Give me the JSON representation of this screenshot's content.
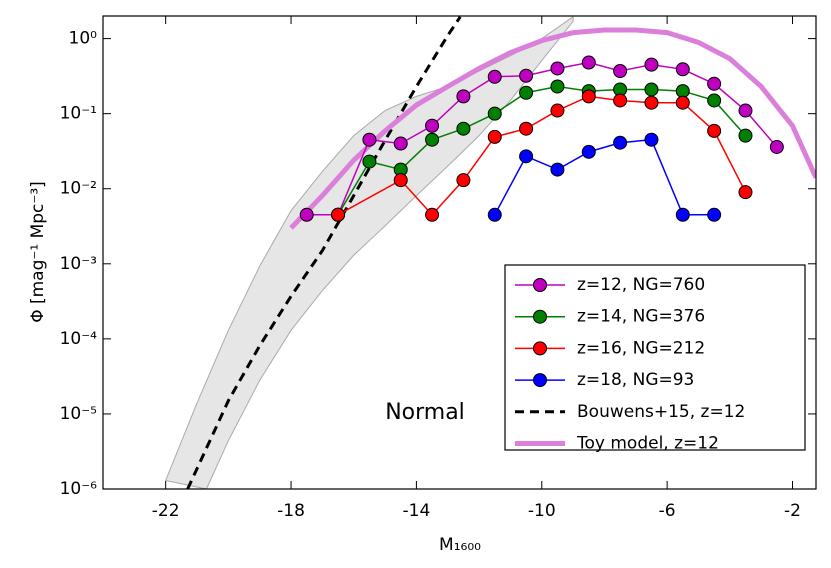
{
  "chart_data": {
    "type": "line",
    "x_label": "M₁₆₀₀",
    "y_label": "Φ [mag⁻¹ Mpc⁻³]",
    "annotation": "Normal",
    "xlim": [
      -24,
      -1.25
    ],
    "xticks": [
      -22,
      -18,
      -14,
      -10,
      -6,
      -2
    ],
    "ylim": [
      1e-06,
      2
    ],
    "log_y": true,
    "yticks": [
      {
        "value": 1e-06,
        "label": "10⁻⁶"
      },
      {
        "value": 1e-05,
        "label": "10⁻⁵"
      },
      {
        "value": 0.0001,
        "label": "10⁻⁴"
      },
      {
        "value": 0.001,
        "label": "10⁻³"
      },
      {
        "value": 0.01,
        "label": "10⁻²"
      },
      {
        "value": 0.1,
        "label": "10⁻¹"
      },
      {
        "value": 1,
        "label": "10⁰"
      }
    ],
    "legend": "lower right",
    "series": [
      {
        "name": "z=12, NG=760",
        "color": "#bf00bf",
        "x": [
          -17.5,
          -16.5,
          -15.5,
          -14.5,
          -13.5,
          -12.5,
          -11.5,
          -10.5,
          -9.5,
          -8.5,
          -7.5,
          -6.5,
          -5.5,
          -4.5,
          -3.5,
          -2.5
        ],
        "values": [
          0.0045,
          0.0045,
          0.045,
          0.04,
          0.069,
          0.17,
          0.31,
          0.32,
          0.4,
          0.48,
          0.37,
          0.45,
          0.39,
          0.25,
          0.11,
          0.036
        ]
      },
      {
        "name": "z=14, NG=376",
        "color": "#008000",
        "x": [
          -16.5,
          -15.5,
          -14.5,
          -13.5,
          -12.5,
          -11.5,
          -10.5,
          -9.5,
          -8.5,
          -7.5,
          -6.5,
          -5.5,
          -4.5,
          -3.5
        ],
        "values": [
          0.0045,
          0.023,
          0.018,
          0.045,
          0.063,
          0.1,
          0.19,
          0.23,
          0.2,
          0.21,
          0.21,
          0.2,
          0.15,
          0.051
        ]
      },
      {
        "name": "z=16, NG=212",
        "color": "#ff0000",
        "x": [
          -16.5,
          -14.5,
          -13.5,
          -12.5,
          -11.5,
          -10.5,
          -9.5,
          -8.5,
          -7.5,
          -6.5,
          -5.5,
          -4.5,
          -3.5
        ],
        "values": [
          0.0045,
          0.013,
          0.0045,
          0.013,
          0.049,
          0.063,
          0.11,
          0.17,
          0.15,
          0.14,
          0.14,
          0.059,
          0.009
        ]
      },
      {
        "name": "z=18, NG=93",
        "color": "#0000ff",
        "x": [
          -11.5,
          -10.5,
          -9.5,
          -8.5,
          -7.5,
          -6.5,
          -5.5,
          -4.5
        ],
        "values": [
          0.0045,
          0.027,
          0.018,
          0.031,
          0.041,
          0.045,
          0.0045,
          0.0045
        ]
      }
    ],
    "lines": [
      {
        "name": "Bouwens+15, z=12",
        "color": "#000000",
        "dashed": true,
        "x": [
          -21.3,
          -20,
          -19,
          -18,
          -17,
          -16,
          -15,
          -14,
          -13,
          -12.6
        ],
        "values": [
          1e-06,
          1.5e-05,
          8.1e-05,
          0.00037,
          0.0015,
          0.0081,
          0.044,
          0.23,
          1.1,
          1.95
        ]
      },
      {
        "name": "Toy model, z=12",
        "color": "#da7fda",
        "dashed": false,
        "x": [
          -18,
          -17,
          -16,
          -15,
          -14,
          -13,
          -12,
          -11,
          -10,
          -9,
          -8,
          -7,
          -6,
          -5,
          -4,
          -3,
          -2,
          -1.25
        ],
        "values": [
          0.003,
          0.0081,
          0.024,
          0.059,
          0.13,
          0.23,
          0.4,
          0.65,
          0.94,
          1.2,
          1.3,
          1.3,
          1.2,
          0.89,
          0.54,
          0.23,
          0.069,
          0.014
        ]
      }
    ],
    "band": {
      "color": "#e6e6e6",
      "x_upper": [
        -22,
        -21,
        -20,
        -19,
        -18,
        -17,
        -16,
        -15,
        -14,
        -13,
        -12,
        -11,
        -10,
        -9
      ],
      "upper": [
        1.3e-06,
        1.4e-05,
        0.00013,
        0.00093,
        0.0051,
        0.017,
        0.051,
        0.11,
        0.17,
        0.23,
        0.37,
        0.59,
        1,
        1.95
      ],
      "x_lower": [
        -20.7,
        -20,
        -19,
        -18,
        -17,
        -16,
        -15,
        -14,
        -13,
        -12,
        -11,
        -10,
        -9
      ],
      "lower": [
        1e-06,
        4.4e-06,
        2.8e-05,
        0.00013,
        0.00044,
        0.0013,
        0.0032,
        0.0081,
        0.02,
        0.051,
        0.15,
        0.51,
        1.7
      ]
    }
  }
}
